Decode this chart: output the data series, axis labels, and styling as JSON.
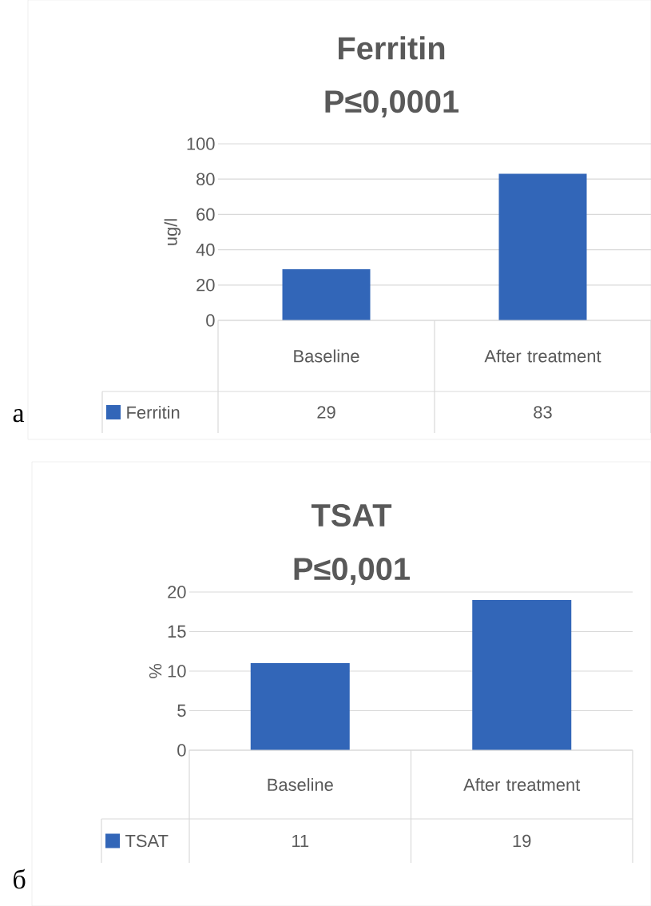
{
  "chart_data": [
    {
      "type": "bar",
      "title": "Ferritin",
      "subtitle": "P≤0,0001",
      "ylabel": "ug/l",
      "categories": [
        "Baseline",
        "After treatment"
      ],
      "series": [
        {
          "name": "Ferritin",
          "color": "#3266b8",
          "values": [
            29,
            83
          ]
        }
      ],
      "ylim": [
        0,
        100
      ],
      "yticks": [
        0,
        20,
        40,
        60,
        80,
        100
      ],
      "grid": "y",
      "legend": "bottom left",
      "data_labels": true,
      "annotations": [
        "а"
      ]
    },
    {
      "type": "bar",
      "title": "TSAT",
      "subtitle": "P≤0,001",
      "ylabel": "%",
      "categories": [
        "Baseline",
        "After treatment"
      ],
      "series": [
        {
          "name": "TSAT",
          "color": "#3266b8",
          "values": [
            11,
            19
          ]
        }
      ],
      "ylim": [
        0,
        20
      ],
      "yticks": [
        0,
        5,
        10,
        15,
        20
      ],
      "grid": "y",
      "legend": "bottom left",
      "data_labels": true,
      "annotations": [
        "б"
      ]
    }
  ]
}
